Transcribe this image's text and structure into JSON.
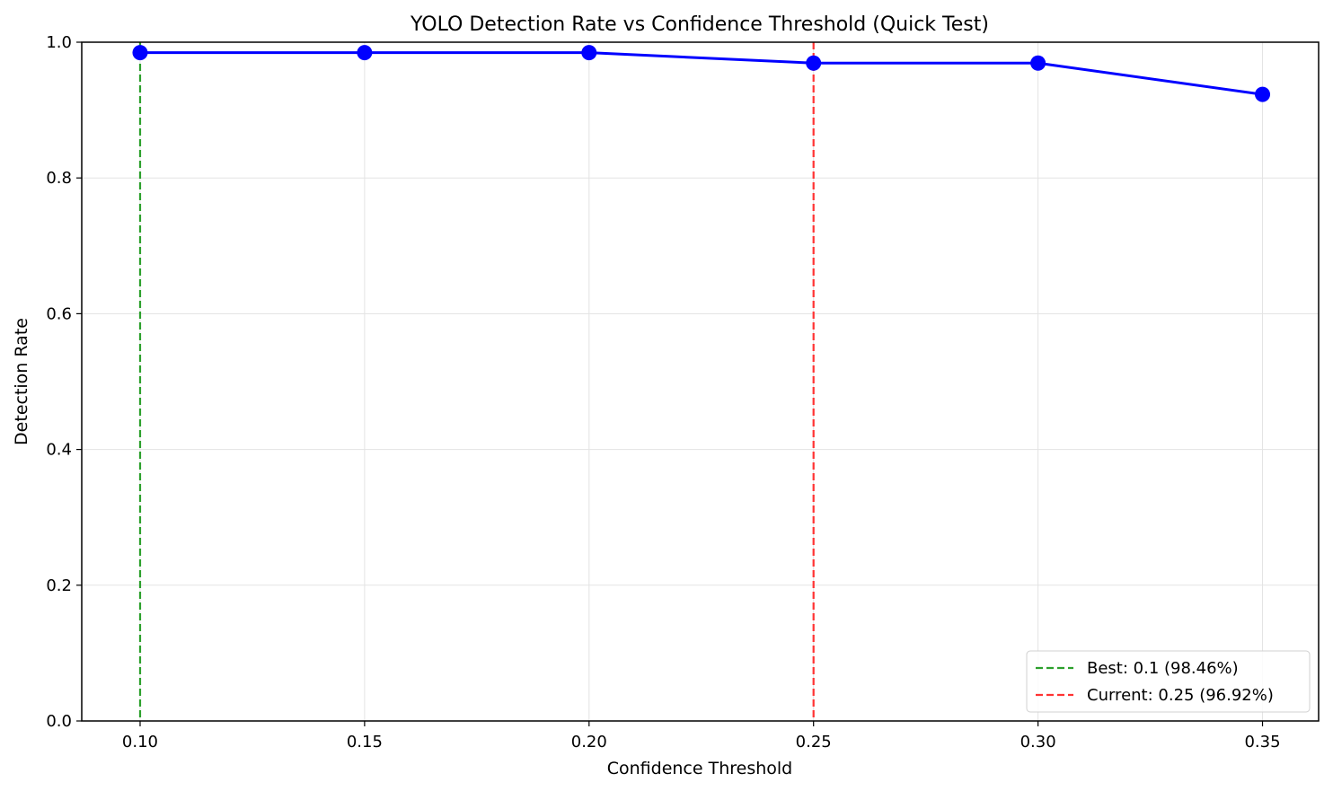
{
  "chart_data": {
    "type": "line",
    "title": "YOLO Detection Rate vs Confidence Threshold (Quick Test)",
    "xlabel": "Confidence Threshold",
    "ylabel": "Detection Rate",
    "xlim": [
      0.087,
      0.3625
    ],
    "ylim": [
      0,
      1
    ],
    "x_ticks": [
      0.1,
      0.15,
      0.2,
      0.25,
      0.3,
      0.35
    ],
    "x_tick_labels": [
      "0.10",
      "0.15",
      "0.20",
      "0.25",
      "0.30",
      "0.35"
    ],
    "y_ticks": [
      0,
      0.2,
      0.4,
      0.6,
      0.8,
      1.0
    ],
    "y_tick_labels": [
      "0.0",
      "0.2",
      "0.4",
      "0.6",
      "0.8",
      "1.0"
    ],
    "grid": true,
    "series": [
      {
        "x": [
          0.1,
          0.15,
          0.2,
          0.25,
          0.3,
          0.35
        ],
        "values": [
          0.9846,
          0.9846,
          0.9846,
          0.9692,
          0.9692,
          0.9231
        ],
        "color": "#0000ff"
      }
    ],
    "reference_lines": [
      {
        "x": 0.1,
        "label": "Best: 0.1 (98.46%)",
        "color": "#2ca02c"
      },
      {
        "x": 0.25,
        "label": "Current: 0.25 (96.92%)",
        "color": "#ff3333"
      }
    ],
    "legend_position": "bottom-right"
  }
}
